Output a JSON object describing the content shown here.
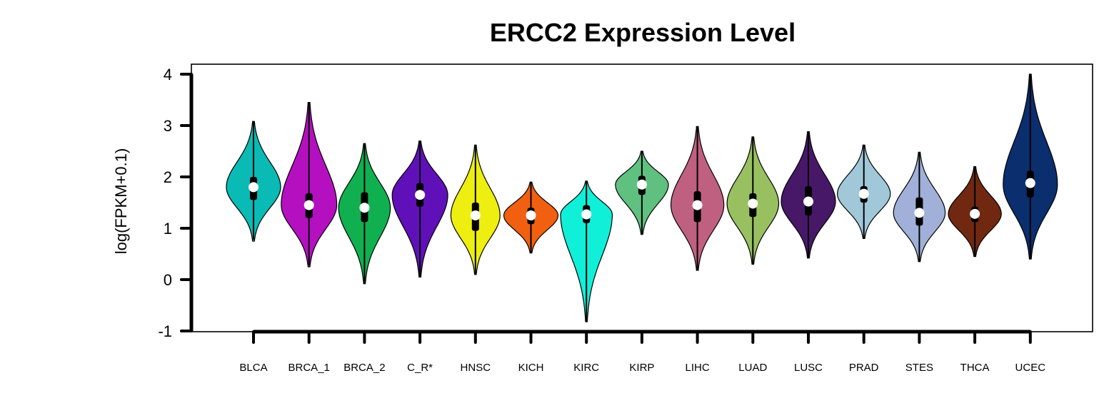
{
  "chart_data": {
    "type": "violin",
    "title": "ERCC2 Expression Level",
    "xlabel": "",
    "ylabel": "log(FPKM+0.1)",
    "ylim": [
      -1,
      4
    ],
    "yticks": [
      "-1",
      "0",
      "1",
      "2",
      "3",
      "4"
    ],
    "grid": false,
    "legend": "none",
    "categories": [
      "BLCA",
      "BRCA_1",
      "BRCA_2",
      "C_R*",
      "HNSC",
      "KICH",
      "KIRC",
      "KIRP",
      "LIHC",
      "LUAD",
      "LUSC",
      "PRAD",
      "STES",
      "THCA",
      "UCEC"
    ],
    "colors": [
      "#0ABAB5",
      "#B410C0",
      "#10B050",
      "#6010B8",
      "#EEEE10",
      "#F06010",
      "#10F0D8",
      "#60C080",
      "#C06080",
      "#98C060",
      "#481868",
      "#A0C8D8",
      "#A0B0D8",
      "#702810",
      "#0A2E6E"
    ],
    "violins": [
      {
        "name": "BLCA",
        "median": 1.8,
        "q1": 1.55,
        "q3": 2.0,
        "wlo": 0.78,
        "whi": 3.08,
        "min": 0.75,
        "max": 3.08,
        "mode": 1.8,
        "halfwidth": 0.42
      },
      {
        "name": "BRCA_1",
        "median": 1.45,
        "q1": 1.2,
        "q3": 1.68,
        "wlo": 0.28,
        "whi": 3.45,
        "min": 0.25,
        "max": 3.45,
        "mode": 1.45,
        "halfwidth": 0.43
      },
      {
        "name": "BRCA_2",
        "median": 1.4,
        "q1": 1.12,
        "q3": 1.7,
        "wlo": -0.08,
        "whi": 2.65,
        "min": -0.08,
        "max": 2.65,
        "mode": 1.4,
        "halfwidth": 0.4
      },
      {
        "name": "C_R*",
        "median": 1.65,
        "q1": 1.42,
        "q3": 1.88,
        "wlo": 0.05,
        "whi": 2.7,
        "min": 0.05,
        "max": 2.7,
        "mode": 1.65,
        "halfwidth": 0.43
      },
      {
        "name": "HNSC",
        "median": 1.25,
        "q1": 0.95,
        "q3": 1.5,
        "wlo": 0.1,
        "whi": 2.62,
        "min": 0.1,
        "max": 2.62,
        "mode": 1.25,
        "halfwidth": 0.38
      },
      {
        "name": "KICH",
        "median": 1.25,
        "q1": 1.08,
        "q3": 1.4,
        "wlo": 0.52,
        "whi": 1.9,
        "min": 0.52,
        "max": 1.9,
        "mode": 1.25,
        "halfwidth": 0.42
      },
      {
        "name": "KIRC",
        "median": 1.27,
        "q1": 1.1,
        "q3": 1.45,
        "wlo": -0.82,
        "whi": 1.92,
        "min": -0.82,
        "max": 1.92,
        "mode": 1.27,
        "halfwidth": 0.4
      },
      {
        "name": "KIRP",
        "median": 1.85,
        "q1": 1.65,
        "q3": 2.02,
        "wlo": 0.88,
        "whi": 2.5,
        "min": 0.88,
        "max": 2.5,
        "mode": 1.85,
        "halfwidth": 0.41
      },
      {
        "name": "LIHC",
        "median": 1.45,
        "q1": 1.12,
        "q3": 1.72,
        "wlo": 0.18,
        "whi": 2.98,
        "min": 0.18,
        "max": 2.98,
        "mode": 1.45,
        "halfwidth": 0.41
      },
      {
        "name": "LUAD",
        "median": 1.48,
        "q1": 1.22,
        "q3": 1.68,
        "wlo": 0.3,
        "whi": 2.78,
        "min": 0.3,
        "max": 2.78,
        "mode": 1.48,
        "halfwidth": 0.4
      },
      {
        "name": "LUSC",
        "median": 1.52,
        "q1": 1.25,
        "q3": 1.82,
        "wlo": 0.42,
        "whi": 2.88,
        "min": 0.42,
        "max": 2.88,
        "mode": 1.52,
        "halfwidth": 0.42
      },
      {
        "name": "PRAD",
        "median": 1.67,
        "q1": 1.5,
        "q3": 1.82,
        "wlo": 0.8,
        "whi": 2.62,
        "min": 0.8,
        "max": 2.62,
        "mode": 1.67,
        "halfwidth": 0.41
      },
      {
        "name": "STES",
        "median": 1.3,
        "q1": 1.05,
        "q3": 1.6,
        "wlo": 0.35,
        "whi": 2.48,
        "min": 0.35,
        "max": 2.48,
        "mode": 1.3,
        "halfwidth": 0.4
      },
      {
        "name": "THCA",
        "median": 1.28,
        "q1": 1.12,
        "q3": 1.42,
        "wlo": 0.45,
        "whi": 2.2,
        "min": 0.45,
        "max": 2.2,
        "mode": 1.28,
        "halfwidth": 0.41
      },
      {
        "name": "UCEC",
        "median": 1.88,
        "q1": 1.6,
        "q3": 2.12,
        "wlo": 0.4,
        "whi": 4.0,
        "min": 0.4,
        "max": 4.0,
        "mode": 1.85,
        "halfwidth": 0.42
      }
    ]
  }
}
